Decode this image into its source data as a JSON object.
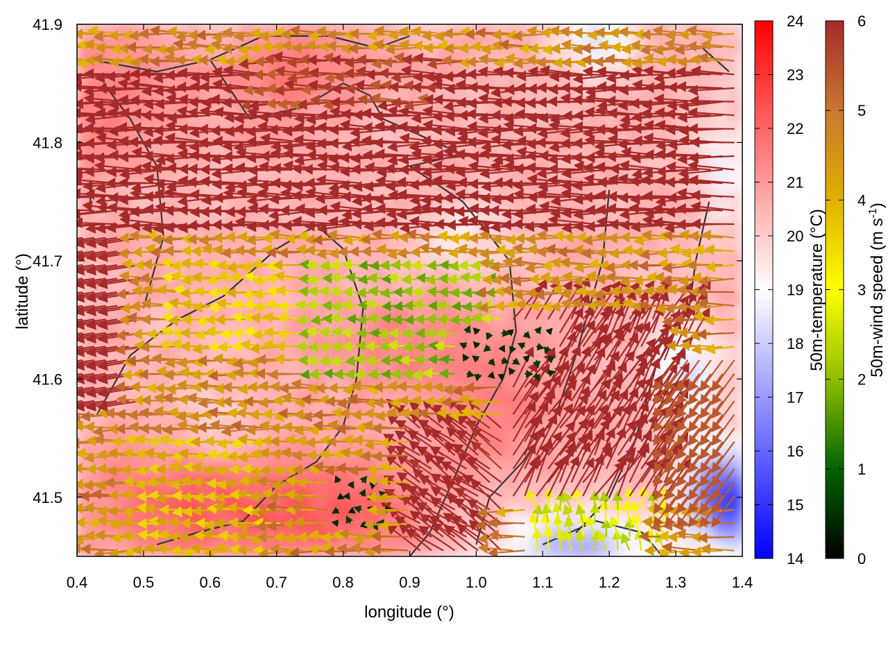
{
  "chart_data": {
    "type": "heatmap",
    "title": "",
    "xlabel": "longitude (°)",
    "ylabel": "latitude (°)",
    "xlim": [
      0.4,
      1.4
    ],
    "ylim": [
      41.45,
      41.9
    ],
    "x_ticks": [
      "0.4",
      "0.5",
      "0.6",
      "0.7",
      "0.8",
      "0.9",
      "1.0",
      "1.1",
      "1.2",
      "1.3",
      "1.4"
    ],
    "y_ticks": [
      "41.5",
      "41.6",
      "41.7",
      "41.8",
      "41.9"
    ],
    "background_field": {
      "label": "50m-temperature (°C)",
      "range": [
        14,
        24
      ],
      "ticks": [
        "14",
        "15",
        "16",
        "17",
        "18",
        "19",
        "20",
        "21",
        "22",
        "23",
        "24"
      ],
      "colormap": [
        "#0000ff",
        "#ffffff",
        "#ff0000"
      ]
    },
    "vector_field": {
      "label_main": "50m-wind speed (m s",
      "label_sup": "-1",
      "label_end": ")",
      "range": [
        0,
        6
      ],
      "ticks": [
        "0",
        "1",
        "2",
        "3",
        "4",
        "5",
        "6"
      ],
      "colormap": [
        "#000000",
        "#006400",
        "#8fbf00",
        "#ffff00",
        "#e0b000",
        "#c87830",
        "#a52a2a"
      ],
      "regimes": [
        {
          "region": "north band, lat 41.72-41.86",
          "speed": 6,
          "direction": "westward"
        },
        {
          "region": "center basin, lon 0.75-1.05, lat 41.6-41.7",
          "speed": 2,
          "direction": "westward"
        },
        {
          "region": "south-east, lon 1.05-1.3, lat 41.5-41.65",
          "speed": 6,
          "direction": "north-eastward"
        },
        {
          "region": "south-west, lon 0.5-0.7, lat 41.47-41.55",
          "speed": 3.5,
          "direction": "westward"
        },
        {
          "region": "calm pocket, lon 0.8-0.88, lat 41.48-41.52",
          "speed": 0.3,
          "direction": "variable"
        }
      ]
    },
    "contour_color": "#333333"
  }
}
